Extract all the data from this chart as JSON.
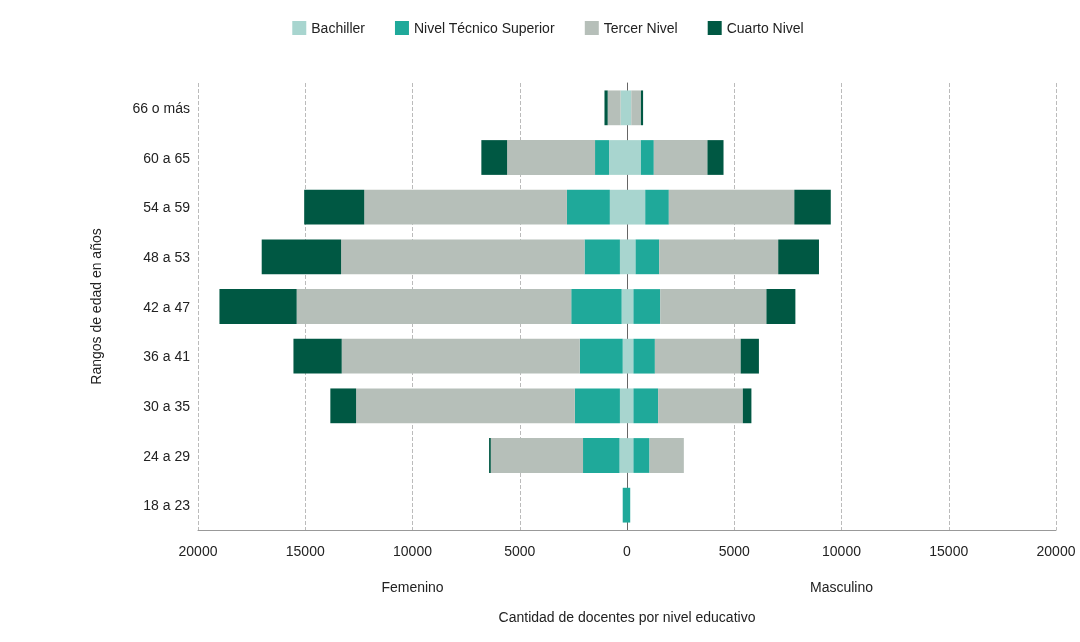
{
  "chart_data": {
    "type": "bar",
    "orientation": "horizontal",
    "stacked": true,
    "categories": [
      "66 o más",
      "60 a 65",
      "54 a 59",
      "48 a 53",
      "42 a 47",
      "36 a 41",
      "30 a 35",
      "24 a 29",
      "18 a 23"
    ],
    "series": [
      {
        "name": "Bachiller",
        "color": "#a8d5cf",
        "values": [
          -300,
          -840,
          -800,
          -330,
          -250,
          -200,
          -330,
          -350,
          null
        ]
      },
      {
        "name": "Nivel Técnico Superior",
        "color": "#1fa99a",
        "values": [
          null,
          -650,
          -2000,
          -1650,
          -2350,
          -2000,
          -2100,
          -1700,
          -200
        ]
      },
      {
        "name": "Tercer Nivel",
        "color": "#b6bfb9",
        "values": [
          -600,
          -4100,
          -9450,
          -11350,
          -12800,
          -11100,
          -10200,
          -4300,
          null
        ]
      },
      {
        "name": "Cuarto Nivel",
        "color": "#005843",
        "values": [
          -150,
          -1200,
          -2800,
          -3700,
          -3600,
          -2250,
          -1200,
          -80,
          null
        ]
      },
      {
        "color": "#a8d5cf",
        "values": [
          200,
          650,
          850,
          400,
          300,
          300,
          300,
          300,
          null
        ]
      },
      {
        "color": "#1fa99a",
        "values": [
          null,
          600,
          1100,
          1100,
          1250,
          1000,
          1150,
          750,
          150
        ]
      },
      {
        "color": "#b6bfb9",
        "values": [
          450,
          2500,
          5850,
          5550,
          4950,
          4000,
          3950,
          1600,
          null
        ]
      },
      {
        "color": "#005843",
        "values": [
          100,
          750,
          1700,
          1900,
          1350,
          850,
          400,
          null,
          null
        ]
      }
    ],
    "xlim": [
      -20000,
      20000
    ],
    "xticks": [
      {
        "value": -20000,
        "label": "20000"
      },
      {
        "value": -15000,
        "label": "15000"
      },
      {
        "value": -10000,
        "label": "10000"
      },
      {
        "value": -5000,
        "label": "5000"
      },
      0,
      5000,
      10000,
      15000,
      20000
    ],
    "xlabel": "Cantidad de docentes por nivel educativo",
    "ylabel": "Rangos de edad en años",
    "annotations": [
      "Femenino",
      "Masculino"
    ],
    "grid": "x",
    "legend": "top"
  }
}
